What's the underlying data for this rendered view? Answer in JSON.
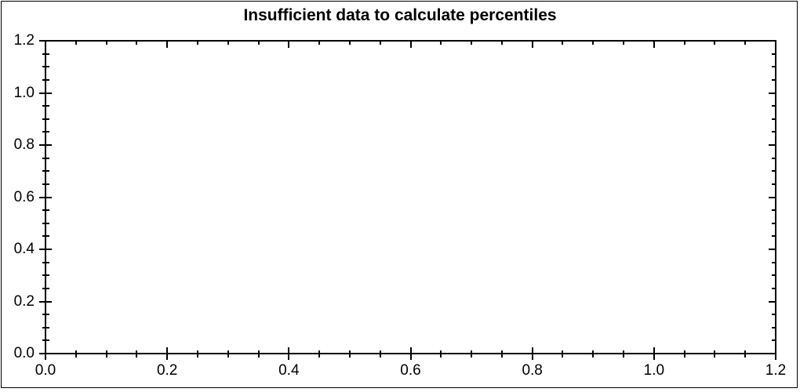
{
  "chart_data": {
    "type": "scatter",
    "title": "Insufficient data to calculate percentiles",
    "series": [],
    "xlabel": "",
    "ylabel": "",
    "xlim": [
      0.0,
      1.2
    ],
    "ylim": [
      0.0,
      1.2
    ],
    "x_ticks": [
      0.0,
      0.2,
      0.4,
      0.6,
      0.8,
      1.0,
      1.2
    ],
    "y_ticks": [
      0.0,
      0.2,
      0.4,
      0.6,
      0.8,
      1.0,
      1.2
    ],
    "x_tick_labels": [
      "0.0",
      "0.2",
      "0.4",
      "0.6",
      "0.8",
      "1.0",
      "1.2"
    ],
    "y_tick_labels": [
      "0.0",
      "0.2",
      "0.4",
      "0.6",
      "0.8",
      "1.0",
      "1.2"
    ],
    "minor_ticks_between_major": 3,
    "grid": false,
    "legend": false,
    "frame": true,
    "colors": {
      "axis": "#000000",
      "text": "#000000",
      "background": "#ffffff"
    }
  }
}
